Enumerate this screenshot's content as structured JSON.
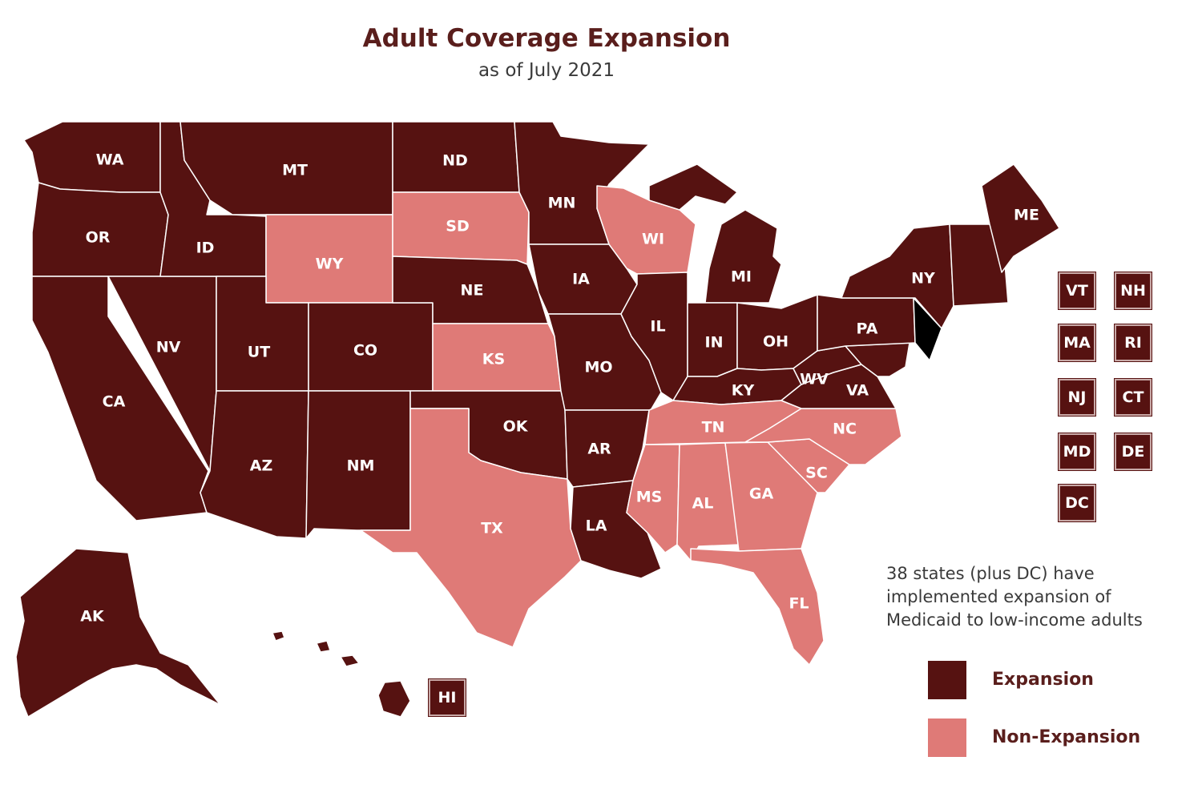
{
  "title": "Adult Coverage Expansion",
  "subtitle": "as of July 2021",
  "note": "38 states (plus DC) have implemented expansion of Medicaid to low-income adults",
  "colors": {
    "expansion": "#561211",
    "non_expansion": "#df7a77"
  },
  "legend": [
    {
      "label": "Expansion",
      "status": "expansion"
    },
    {
      "label": "Non-Expansion",
      "status": "non_expansion"
    }
  ],
  "states": [
    {
      "abbr": "WA",
      "status": "expansion"
    },
    {
      "abbr": "OR",
      "status": "expansion"
    },
    {
      "abbr": "CA",
      "status": "expansion"
    },
    {
      "abbr": "NV",
      "status": "expansion"
    },
    {
      "abbr": "ID",
      "status": "expansion"
    },
    {
      "abbr": "MT",
      "status": "expansion"
    },
    {
      "abbr": "WY",
      "status": "non_expansion"
    },
    {
      "abbr": "UT",
      "status": "expansion"
    },
    {
      "abbr": "CO",
      "status": "expansion"
    },
    {
      "abbr": "AZ",
      "status": "expansion"
    },
    {
      "abbr": "NM",
      "status": "expansion"
    },
    {
      "abbr": "ND",
      "status": "expansion"
    },
    {
      "abbr": "SD",
      "status": "non_expansion"
    },
    {
      "abbr": "NE",
      "status": "expansion"
    },
    {
      "abbr": "KS",
      "status": "non_expansion"
    },
    {
      "abbr": "OK",
      "status": "expansion"
    },
    {
      "abbr": "TX",
      "status": "non_expansion"
    },
    {
      "abbr": "MN",
      "status": "expansion"
    },
    {
      "abbr": "IA",
      "status": "expansion"
    },
    {
      "abbr": "MO",
      "status": "expansion"
    },
    {
      "abbr": "AR",
      "status": "expansion"
    },
    {
      "abbr": "LA",
      "status": "expansion"
    },
    {
      "abbr": "WI",
      "status": "non_expansion"
    },
    {
      "abbr": "IL",
      "status": "expansion"
    },
    {
      "abbr": "MI",
      "status": "expansion"
    },
    {
      "abbr": "IN",
      "status": "expansion"
    },
    {
      "abbr": "OH",
      "status": "expansion"
    },
    {
      "abbr": "KY",
      "status": "expansion"
    },
    {
      "abbr": "TN",
      "status": "non_expansion"
    },
    {
      "abbr": "MS",
      "status": "non_expansion"
    },
    {
      "abbr": "AL",
      "status": "non_expansion"
    },
    {
      "abbr": "GA",
      "status": "non_expansion"
    },
    {
      "abbr": "FL",
      "status": "non_expansion"
    },
    {
      "abbr": "SC",
      "status": "non_expansion"
    },
    {
      "abbr": "NC",
      "status": "non_expansion"
    },
    {
      "abbr": "VA",
      "status": "expansion"
    },
    {
      "abbr": "WV",
      "status": "expansion"
    },
    {
      "abbr": "PA",
      "status": "expansion"
    },
    {
      "abbr": "NY",
      "status": "expansion"
    },
    {
      "abbr": "ME",
      "status": "expansion"
    },
    {
      "abbr": "AK",
      "status": "expansion"
    }
  ],
  "small_states": [
    {
      "abbr": "VT",
      "status": "expansion"
    },
    {
      "abbr": "NH",
      "status": "expansion"
    },
    {
      "abbr": "MA",
      "status": "expansion"
    },
    {
      "abbr": "RI",
      "status": "expansion"
    },
    {
      "abbr": "NJ",
      "status": "expansion"
    },
    {
      "abbr": "CT",
      "status": "expansion"
    },
    {
      "abbr": "MD",
      "status": "expansion"
    },
    {
      "abbr": "DE",
      "status": "expansion"
    },
    {
      "abbr": "DC",
      "status": "expansion"
    },
    {
      "abbr": "HI",
      "status": "expansion"
    }
  ]
}
